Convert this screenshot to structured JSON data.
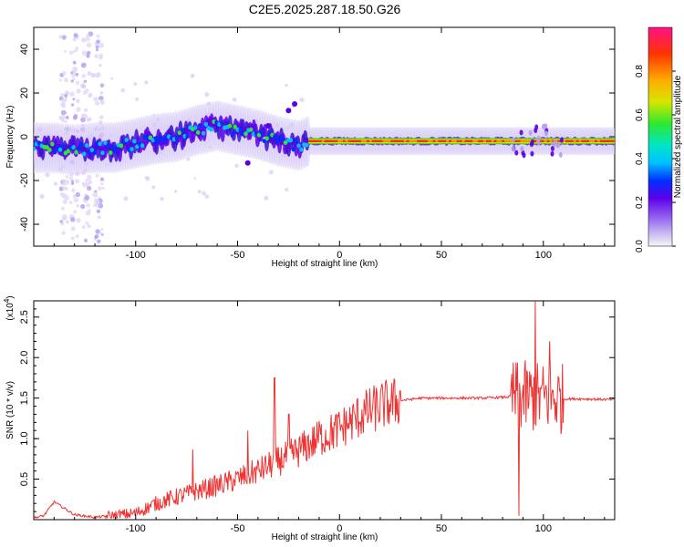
{
  "title": "C2E5.2025.287.18.50.G26",
  "colors": {
    "snr_line": "#ee3333",
    "colorbar": [
      "#f7f7f7",
      "#cfc2f2",
      "#9b6ef0",
      "#5a00e8",
      "#0030ff",
      "#00bfff",
      "#00e6c8",
      "#2ee82e",
      "#d8e600",
      "#ffaa00",
      "#ff3300",
      "#ff1188"
    ]
  },
  "chart_data": [
    {
      "type": "heatmap",
      "xlabel": "Height of straight line (km)",
      "ylabel": "Frequency (Hz)",
      "xlim": [
        -150,
        135
      ],
      "ylim": [
        -50,
        50
      ],
      "x_ticks": [
        "-100",
        "-50",
        "0",
        "50",
        "100"
      ],
      "y_ticks": [
        "-40",
        "-20",
        "0",
        "20",
        "40"
      ],
      "colorbar": {
        "label": "Normalized spectral amplitude",
        "range": [
          0,
          1
        ],
        "ticks": [
          "0.0",
          "0.2",
          "0.4",
          "0.6",
          "0.8"
        ]
      },
      "ridge": {
        "x": [
          -150,
          -140,
          -130,
          -120,
          -110,
          -100,
          -90,
          -80,
          -70,
          -60,
          -50,
          -40,
          -30,
          -25,
          -20,
          -15,
          -10,
          0,
          20,
          50,
          80,
          90,
          100,
          110,
          120,
          135
        ],
        "frequency_hz": [
          -5,
          -5,
          -6,
          -5,
          -5,
          -3,
          -1,
          0,
          3,
          5,
          3,
          1,
          -2,
          -3,
          -4,
          -2,
          -2,
          -2,
          -2,
          -2,
          -2,
          -2,
          -2,
          -2,
          -2,
          -2
        ]
      }
    },
    {
      "type": "line",
      "xlabel": "Height of straight line (km)",
      "ylabel": "SNR (10 * v/v)",
      "yscale_label": "(x10",
      "yscale_exponent": "4",
      "xlim": [
        -150,
        135
      ],
      "ylim": [
        0,
        2.7
      ],
      "x_ticks": [
        "-100",
        "-50",
        "0",
        "50",
        "100"
      ],
      "y_ticks": [
        "0.5",
        "1.0",
        "1.5",
        "2.0",
        "2.5"
      ],
      "envelope": {
        "x": [
          -150,
          -145,
          -140,
          -130,
          -120,
          -110,
          -100,
          -95,
          -90,
          -80,
          -70,
          -60,
          -50,
          -40,
          -30,
          -20,
          -10,
          0,
          10,
          20,
          30,
          40,
          50,
          60,
          70,
          80,
          85,
          90,
          95,
          100,
          105,
          110,
          120,
          135
        ],
        "snr": [
          0.02,
          0.05,
          0.22,
          0.06,
          0.03,
          0.05,
          0.08,
          0.14,
          0.2,
          0.28,
          0.35,
          0.42,
          0.5,
          0.6,
          0.72,
          0.85,
          1.0,
          1.12,
          1.28,
          1.4,
          1.47,
          1.5,
          1.5,
          1.5,
          1.5,
          1.51,
          1.52,
          1.52,
          1.51,
          1.5,
          1.5,
          1.49,
          1.49,
          1.48
        ]
      },
      "spikes": [
        {
          "x": -72,
          "snr": 0.87
        },
        {
          "x": -45,
          "snr": 1.1
        },
        {
          "x": -32,
          "snr": 1.75
        },
        {
          "x": -25,
          "snr": 1.3
        },
        {
          "x": -10,
          "snr": 1.22
        },
        {
          "x": 88,
          "snr": 0.05
        },
        {
          "x": 96,
          "snr": 2.7
        },
        {
          "x": 103,
          "snr": 2.2
        }
      ]
    }
  ]
}
